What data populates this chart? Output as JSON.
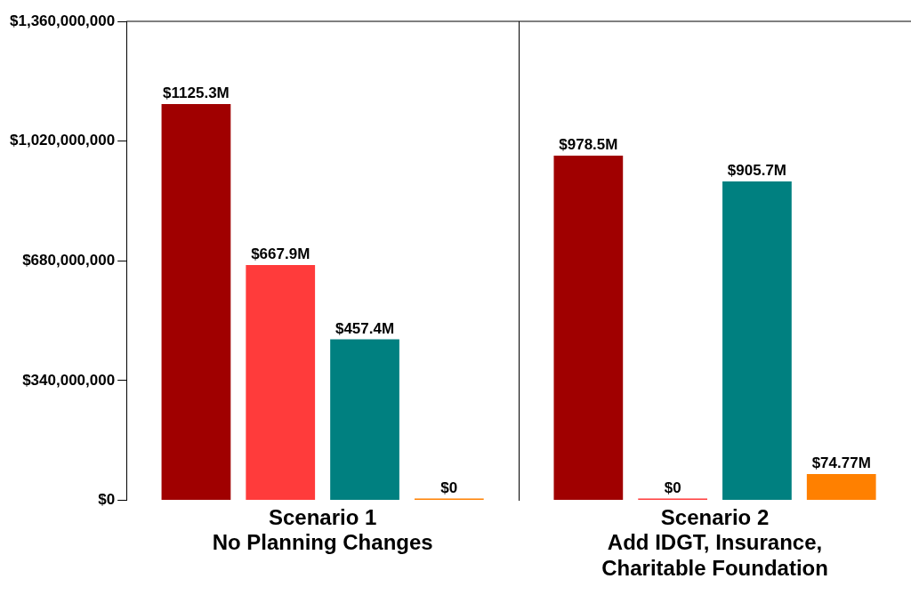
{
  "chart_data": {
    "type": "bar",
    "categories": [
      "Scenario 1\nNo Planning Changes",
      "Scenario 2\nAdd IDGT, Insurance,\nCharitable Foundation"
    ],
    "series": [
      {
        "color": "#a00000",
        "values": [
          1125300000,
          978500000
        ],
        "value_labels": [
          "$1125.3M",
          "$978.5M"
        ]
      },
      {
        "color": "#ff3b3b",
        "values": [
          667900000,
          0
        ],
        "value_labels": [
          "$667.9M",
          "$0"
        ]
      },
      {
        "color": "#008080",
        "values": [
          457400000,
          905700000
        ],
        "value_labels": [
          "$457.4M",
          "$905.7M"
        ]
      },
      {
        "color": "#ff8000",
        "values": [
          0,
          74770000
        ],
        "value_labels": [
          "$0",
          "$74.77M"
        ]
      }
    ],
    "ylim": [
      0,
      1360000000
    ],
    "yticks": [
      {
        "value": 0,
        "label": "$0"
      },
      {
        "value": 340000000,
        "label": "$340,000,000"
      },
      {
        "value": 680000000,
        "label": "$680,000,000"
      },
      {
        "value": 1020000000,
        "label": "$1,020,000,000"
      },
      {
        "value": 1360000000,
        "label": "$1,360,000,000"
      }
    ],
    "grid": false,
    "legend": false
  }
}
